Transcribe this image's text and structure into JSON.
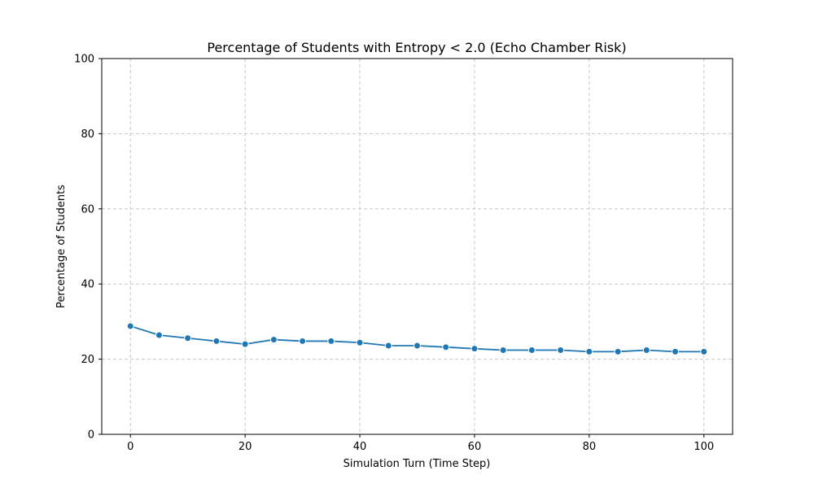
{
  "chart_data": {
    "type": "line",
    "title": "Percentage of Students with Entropy < 2.0 (Echo Chamber Risk)",
    "xlabel": "Simulation Turn (Time Step)",
    "ylabel": "Percentage of Students",
    "xlim": [
      -5,
      105
    ],
    "ylim": [
      0,
      100
    ],
    "xticks": [
      0,
      20,
      40,
      60,
      80,
      100
    ],
    "yticks": [
      0,
      20,
      40,
      60,
      80,
      100
    ],
    "grid": true,
    "series": [
      {
        "color": "#1f77b4",
        "marker": "circle",
        "x": [
          0,
          5,
          10,
          15,
          20,
          25,
          30,
          35,
          40,
          45,
          50,
          55,
          60,
          65,
          70,
          75,
          80,
          85,
          90,
          95,
          100
        ],
        "y": [
          28.8,
          26.4,
          25.6,
          24.8,
          24.0,
          25.2,
          24.8,
          24.8,
          24.4,
          23.6,
          23.6,
          23.2,
          22.8,
          22.4,
          22.4,
          22.4,
          22.0,
          22.0,
          22.4,
          22.0,
          22.0
        ]
      }
    ]
  }
}
